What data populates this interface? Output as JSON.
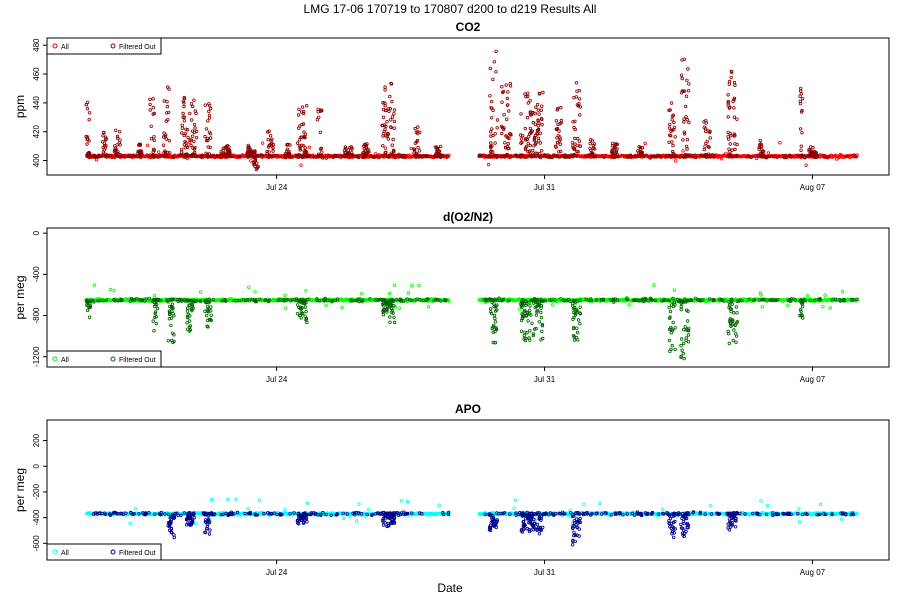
{
  "super_title": "LMG   17-06    170719 to 170807    d200 to d219   Results All",
  "x_axis_title": "Date",
  "chart_data": [
    {
      "type": "scatter",
      "title": "CO2",
      "xlabel": "Date",
      "ylabel": "ppm",
      "xlim": [
        "2017-07-18",
        "2017-08-09"
      ],
      "ylim": [
        390,
        485
      ],
      "yticks": [
        400,
        420,
        440,
        460,
        480
      ],
      "xticks": [
        {
          "date": "2017-07-24",
          "label": "Jul 24"
        },
        {
          "date": "2017-07-31",
          "label": "Jul 31"
        },
        {
          "date": "2017-08-07",
          "label": "Aug 07"
        }
      ],
      "grid": false,
      "legend_position": "top-left",
      "series": [
        {
          "name": "All",
          "color": "#ff0000",
          "segments": [
            {
              "start": "2017-07-19T01:00",
              "end": "2017-07-28T12:00",
              "base": 403
            },
            {
              "start": "2017-07-29T07:00",
              "end": "2017-08-08T04:00",
              "base": 403
            }
          ]
        },
        {
          "name": "Filtered Out",
          "color": "#8b0000",
          "bursts": [
            {
              "at": "2017-07-19T02:00",
              "width_h": 3,
              "peak": 444
            },
            {
              "at": "2017-07-19T12:00",
              "width_h": 3,
              "peak": 421
            },
            {
              "at": "2017-07-19T20:00",
              "width_h": 4,
              "peak": 422
            },
            {
              "at": "2017-07-20T10:00",
              "width_h": 3,
              "peak": 412
            },
            {
              "at": "2017-07-20T18:00",
              "width_h": 3,
              "peak": 454
            },
            {
              "at": "2017-07-21T03:00",
              "width_h": 4,
              "peak": 460
            },
            {
              "at": "2017-07-21T14:00",
              "width_h": 5,
              "peak": 448
            },
            {
              "at": "2017-07-21T20:00",
              "width_h": 5,
              "peak": 442
            },
            {
              "at": "2017-07-22T05:00",
              "width_h": 4,
              "peak": 440
            },
            {
              "at": "2017-07-22T16:00",
              "width_h": 6,
              "peak": 410
            },
            {
              "at": "2017-07-23T08:00",
              "width_h": 5,
              "peak": 412
            },
            {
              "at": "2017-07-23T20:00",
              "width_h": 4,
              "peak": 421
            },
            {
              "at": "2017-07-24T07:00",
              "width_h": 3,
              "peak": 412
            },
            {
              "at": "2017-07-24T16:00",
              "width_h": 6,
              "peak": 438
            },
            {
              "at": "2017-07-25T03:00",
              "width_h": 3,
              "peak": 437
            },
            {
              "at": "2017-07-25T21:00",
              "width_h": 5,
              "peak": 410
            },
            {
              "at": "2017-07-26T08:00",
              "width_h": 4,
              "peak": 412
            },
            {
              "at": "2017-07-26T22:00",
              "width_h": 8,
              "peak": 455
            },
            {
              "at": "2017-07-27T16:00",
              "width_h": 4,
              "peak": 425
            },
            {
              "at": "2017-07-28T05:00",
              "width_h": 4,
              "peak": 410
            },
            {
              "at": "2017-07-29T16:00",
              "width_h": 5,
              "peak": 481
            },
            {
              "at": "2017-07-30T00:00",
              "width_h": 6,
              "peak": 455
            },
            {
              "at": "2017-07-30T16:00",
              "width_h": 14,
              "peak": 448
            },
            {
              "at": "2017-07-31T09:00",
              "width_h": 4,
              "peak": 438
            },
            {
              "at": "2017-07-31T20:00",
              "width_h": 5,
              "peak": 455
            },
            {
              "at": "2017-08-01T06:00",
              "width_h": 3,
              "peak": 416
            },
            {
              "at": "2017-08-01T20:00",
              "width_h": 4,
              "peak": 412
            },
            {
              "at": "2017-08-02T12:00",
              "width_h": 3,
              "peak": 410
            },
            {
              "at": "2017-08-03T08:00",
              "width_h": 4,
              "peak": 440
            },
            {
              "at": "2017-08-03T16:00",
              "width_h": 5,
              "peak": 478
            },
            {
              "at": "2017-08-04T06:00",
              "width_h": 4,
              "peak": 428
            },
            {
              "at": "2017-08-04T22:00",
              "width_h": 6,
              "peak": 462
            },
            {
              "at": "2017-08-05T16:00",
              "width_h": 3,
              "peak": 416
            },
            {
              "at": "2017-08-06T17:00",
              "width_h": 2,
              "peak": 452
            },
            {
              "at": "2017-08-07T00:00",
              "width_h": 5,
              "peak": 409
            }
          ],
          "dips": [
            {
              "at": "2017-07-23T11:00",
              "width_h": 3,
              "low": 392
            }
          ]
        }
      ]
    },
    {
      "type": "scatter",
      "title": "d(O2/N2)",
      "xlabel": "Date",
      "ylabel": "per meg",
      "xlim": [
        "2017-07-18",
        "2017-08-09"
      ],
      "ylim": [
        -1300,
        50
      ],
      "yticks": [
        -1200,
        -800,
        -400,
        0
      ],
      "xticks": [
        {
          "date": "2017-07-24",
          "label": "Jul 24"
        },
        {
          "date": "2017-07-31",
          "label": "Jul 31"
        },
        {
          "date": "2017-08-07",
          "label": "Aug 07"
        }
      ],
      "grid": false,
      "legend_position": "bottom-left",
      "series": [
        {
          "name": "All",
          "color": "#00ff00",
          "segments": [
            {
              "start": "2017-07-19T01:00",
              "end": "2017-07-28T12:00",
              "base": -650
            },
            {
              "start": "2017-07-29T07:00",
              "end": "2017-08-08T04:00",
              "base": -650
            }
          ]
        },
        {
          "name": "Filtered Out",
          "color": "#006400",
          "bursts": [
            {
              "at": "2017-07-19T02:00",
              "width_h": 3,
              "peak": -870
            },
            {
              "at": "2017-07-20T20:00",
              "width_h": 3,
              "peak": -960
            },
            {
              "at": "2017-07-21T06:00",
              "width_h": 4,
              "peak": -1080
            },
            {
              "at": "2017-07-21T18:00",
              "width_h": 5,
              "peak": -950
            },
            {
              "at": "2017-07-22T05:00",
              "width_h": 4,
              "peak": -920
            },
            {
              "at": "2017-07-24T16:00",
              "width_h": 6,
              "peak": -860
            },
            {
              "at": "2017-07-26T22:00",
              "width_h": 8,
              "peak": -880
            },
            {
              "at": "2017-07-29T16:00",
              "width_h": 5,
              "peak": -1080
            },
            {
              "at": "2017-07-30T16:00",
              "width_h": 14,
              "peak": -1050
            },
            {
              "at": "2017-07-31T20:00",
              "width_h": 5,
              "peak": -1100
            },
            {
              "at": "2017-08-03T08:00",
              "width_h": 4,
              "peak": -1200
            },
            {
              "at": "2017-08-03T16:00",
              "width_h": 5,
              "peak": -1260
            },
            {
              "at": "2017-08-04T22:00",
              "width_h": 6,
              "peak": -1080
            },
            {
              "at": "2017-08-06T17:00",
              "width_h": 2,
              "peak": -820
            }
          ]
        }
      ]
    },
    {
      "type": "scatter",
      "title": "APO",
      "xlabel": "Date",
      "ylabel": "per meg",
      "xlim": [
        "2017-07-18",
        "2017-08-09"
      ],
      "ylim": [
        -730,
        360
      ],
      "yticks": [
        -600,
        -400,
        -200,
        0,
        200
      ],
      "xticks": [
        {
          "date": "2017-07-24",
          "label": "Jul 24"
        },
        {
          "date": "2017-07-31",
          "label": "Jul 31"
        },
        {
          "date": "2017-08-07",
          "label": "Aug 07"
        }
      ],
      "grid": false,
      "legend_position": "bottom-left",
      "series": [
        {
          "name": "All",
          "color": "#00ffff",
          "segments": [
            {
              "start": "2017-07-19T01:00",
              "end": "2017-07-28T12:00",
              "base": -370
            },
            {
              "start": "2017-07-29T07:00",
              "end": "2017-08-08T04:00",
              "base": -370
            }
          ]
        },
        {
          "name": "Filtered Out",
          "color": "#00008b",
          "bursts": [
            {
              "at": "2017-07-21T06:00",
              "width_h": 4,
              "peak": -560
            },
            {
              "at": "2017-07-21T18:00",
              "width_h": 5,
              "peak": -470
            },
            {
              "at": "2017-07-22T05:00",
              "width_h": 4,
              "peak": -520
            },
            {
              "at": "2017-07-24T16:00",
              "width_h": 6,
              "peak": -450
            },
            {
              "at": "2017-07-26T22:00",
              "width_h": 8,
              "peak": -470
            },
            {
              "at": "2017-07-29T16:00",
              "width_h": 5,
              "peak": -520
            },
            {
              "at": "2017-07-30T16:00",
              "width_h": 14,
              "peak": -520
            },
            {
              "at": "2017-07-31T20:00",
              "width_h": 5,
              "peak": -610
            },
            {
              "at": "2017-08-03T08:00",
              "width_h": 4,
              "peak": -560
            },
            {
              "at": "2017-08-03T16:00",
              "width_h": 5,
              "peak": -560
            },
            {
              "at": "2017-08-04T22:00",
              "width_h": 6,
              "peak": -500
            }
          ]
        }
      ]
    }
  ]
}
